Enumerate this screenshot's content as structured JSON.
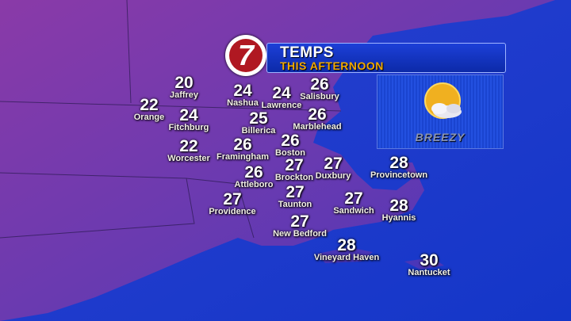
{
  "header": {
    "title": "TEMPS",
    "subtitle": "THIS AFTERNOON",
    "logo": "7"
  },
  "forecast_panel": {
    "icon": "partly-sunny-icon",
    "condition": "BREEZY"
  },
  "colors": {
    "land": "#6a3aa8",
    "ocean": "#1a3ad0",
    "header_bg": "#1c3fd8",
    "subtitle": "#f0a800",
    "logo_red": "#b01822"
  },
  "cities": [
    {
      "name": "Jaffrey",
      "temp": "20"
    },
    {
      "name": "Orange",
      "temp": "22"
    },
    {
      "name": "Fitchburg",
      "temp": "24"
    },
    {
      "name": "Worcester",
      "temp": "22"
    },
    {
      "name": "Nashua",
      "temp": "24"
    },
    {
      "name": "Lawrence",
      "temp": "24"
    },
    {
      "name": "Salisbury",
      "temp": "26"
    },
    {
      "name": "Billerica",
      "temp": "25"
    },
    {
      "name": "Marblehead",
      "temp": "26"
    },
    {
      "name": "Framingham",
      "temp": "26"
    },
    {
      "name": "Boston",
      "temp": "26"
    },
    {
      "name": "Attleboro",
      "temp": "26"
    },
    {
      "name": "Brockton",
      "temp": "27"
    },
    {
      "name": "Duxbury",
      "temp": "27"
    },
    {
      "name": "Providence",
      "temp": "27"
    },
    {
      "name": "Taunton",
      "temp": "27"
    },
    {
      "name": "New Bedford",
      "temp": "27"
    },
    {
      "name": "Sandwich",
      "temp": "27"
    },
    {
      "name": "Provincetown",
      "temp": "28"
    },
    {
      "name": "Hyannis",
      "temp": "28"
    },
    {
      "name": "Vineyard Haven",
      "temp": "28"
    },
    {
      "name": "Nantucket",
      "temp": "30"
    }
  ]
}
